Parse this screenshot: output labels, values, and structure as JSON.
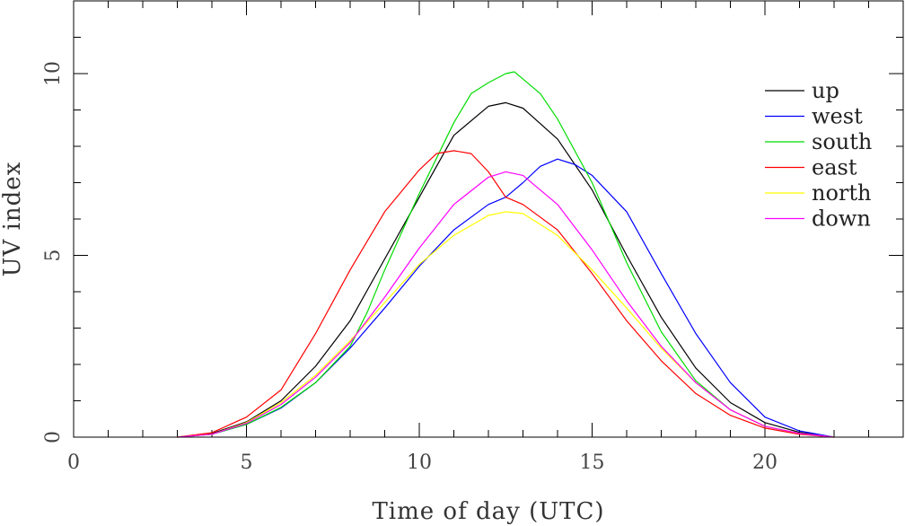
{
  "chart_data": {
    "type": "line",
    "xlabel": "Time of day (UTC)",
    "ylabel": "UV index",
    "xlim": [
      0,
      24
    ],
    "ylim": [
      0,
      12
    ],
    "x_ticks": [
      0,
      5,
      10,
      15,
      20
    ],
    "y_ticks": [
      0,
      5,
      10
    ],
    "legend_position": "right",
    "grid": false,
    "series": [
      {
        "name": "up",
        "color": "#000000",
        "points": [
          [
            3,
            0
          ],
          [
            4,
            0.1
          ],
          [
            5,
            0.42
          ],
          [
            6,
            1.0
          ],
          [
            7,
            1.95
          ],
          [
            8,
            3.2
          ],
          [
            9,
            4.9
          ],
          [
            10,
            6.6
          ],
          [
            11,
            8.3
          ],
          [
            12,
            9.1
          ],
          [
            12.5,
            9.2
          ],
          [
            13,
            9.05
          ],
          [
            14,
            8.2
          ],
          [
            15,
            6.8
          ],
          [
            16,
            5.0
          ],
          [
            17,
            3.3
          ],
          [
            18,
            1.9
          ],
          [
            19,
            0.95
          ],
          [
            20,
            0.4
          ],
          [
            21,
            0.13
          ],
          [
            22,
            0
          ]
        ]
      },
      {
        "name": "west",
        "color": "#0000ff",
        "points": [
          [
            3,
            0
          ],
          [
            4,
            0.08
          ],
          [
            5,
            0.35
          ],
          [
            6,
            0.8
          ],
          [
            7,
            1.5
          ],
          [
            8,
            2.45
          ],
          [
            9,
            3.55
          ],
          [
            10,
            4.7
          ],
          [
            11,
            5.7
          ],
          [
            12,
            6.4
          ],
          [
            12.5,
            6.6
          ],
          [
            13,
            7.0
          ],
          [
            13.5,
            7.45
          ],
          [
            14,
            7.65
          ],
          [
            14.5,
            7.5
          ],
          [
            15,
            7.2
          ],
          [
            16,
            6.2
          ],
          [
            17,
            4.5
          ],
          [
            18,
            2.85
          ],
          [
            19,
            1.5
          ],
          [
            20,
            0.55
          ],
          [
            21,
            0.17
          ],
          [
            22,
            0
          ]
        ]
      },
      {
        "name": "south",
        "color": "#00dd00",
        "points": [
          [
            3,
            0
          ],
          [
            4,
            0.08
          ],
          [
            5,
            0.35
          ],
          [
            6,
            0.82
          ],
          [
            7,
            1.5
          ],
          [
            8,
            2.5
          ],
          [
            8.5,
            3.45
          ],
          [
            9,
            4.6
          ],
          [
            10,
            6.7
          ],
          [
            11,
            8.65
          ],
          [
            11.5,
            9.45
          ],
          [
            12,
            9.75
          ],
          [
            12.5,
            10.0
          ],
          [
            12.75,
            10.05
          ],
          [
            13,
            9.85
          ],
          [
            13.5,
            9.45
          ],
          [
            14,
            8.75
          ],
          [
            15,
            7.0
          ],
          [
            16,
            4.8
          ],
          [
            17,
            2.9
          ],
          [
            18,
            1.55
          ],
          [
            19,
            0.75
          ],
          [
            20,
            0.3
          ],
          [
            21,
            0.1
          ],
          [
            22,
            0
          ]
        ]
      },
      {
        "name": "east",
        "color": "#ff0000",
        "points": [
          [
            3,
            0
          ],
          [
            4,
            0.12
          ],
          [
            5,
            0.55
          ],
          [
            6,
            1.3
          ],
          [
            7,
            2.85
          ],
          [
            8,
            4.6
          ],
          [
            9,
            6.2
          ],
          [
            10,
            7.35
          ],
          [
            10.5,
            7.8
          ],
          [
            11,
            7.88
          ],
          [
            11.5,
            7.8
          ],
          [
            12,
            7.3
          ],
          [
            12.5,
            6.6
          ],
          [
            13,
            6.4
          ],
          [
            14,
            5.7
          ],
          [
            15,
            4.5
          ],
          [
            16,
            3.2
          ],
          [
            17,
            2.1
          ],
          [
            18,
            1.2
          ],
          [
            19,
            0.6
          ],
          [
            20,
            0.25
          ],
          [
            21,
            0.08
          ],
          [
            22,
            0
          ]
        ]
      },
      {
        "name": "north",
        "color": "#ffff00",
        "points": [
          [
            3,
            0
          ],
          [
            4,
            0.08
          ],
          [
            5,
            0.4
          ],
          [
            6,
            0.95
          ],
          [
            7,
            1.7
          ],
          [
            8,
            2.65
          ],
          [
            9,
            3.7
          ],
          [
            10,
            4.75
          ],
          [
            11,
            5.55
          ],
          [
            12,
            6.1
          ],
          [
            12.5,
            6.2
          ],
          [
            13,
            6.15
          ],
          [
            14,
            5.55
          ],
          [
            15,
            4.6
          ],
          [
            16,
            3.55
          ],
          [
            17,
            2.45
          ],
          [
            18,
            1.5
          ],
          [
            19,
            0.75
          ],
          [
            20,
            0.3
          ],
          [
            21,
            0.1
          ],
          [
            22,
            0
          ]
        ]
      },
      {
        "name": "down",
        "color": "#ff00ff",
        "points": [
          [
            3,
            0
          ],
          [
            4,
            0.08
          ],
          [
            5,
            0.38
          ],
          [
            6,
            0.9
          ],
          [
            7,
            1.65
          ],
          [
            8,
            2.6
          ],
          [
            9,
            3.85
          ],
          [
            10,
            5.2
          ],
          [
            11,
            6.4
          ],
          [
            12,
            7.15
          ],
          [
            12.5,
            7.3
          ],
          [
            13,
            7.2
          ],
          [
            14,
            6.4
          ],
          [
            15,
            5.15
          ],
          [
            16,
            3.75
          ],
          [
            17,
            2.5
          ],
          [
            18,
            1.5
          ],
          [
            19,
            0.75
          ],
          [
            20,
            0.3
          ],
          [
            21,
            0.1
          ],
          [
            22,
            0
          ]
        ]
      }
    ]
  }
}
